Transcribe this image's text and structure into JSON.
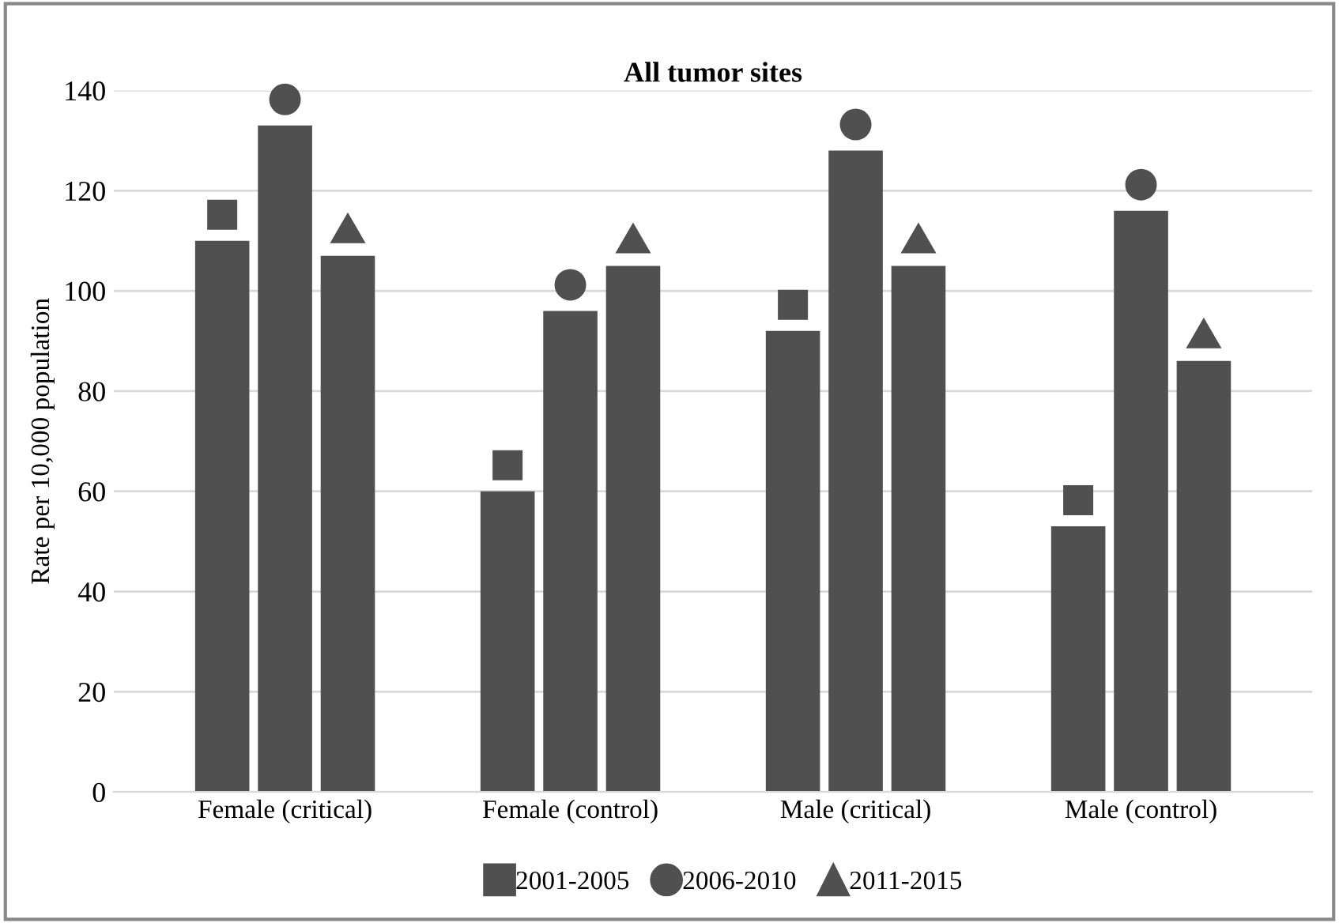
{
  "chart_data": {
    "type": "bar",
    "title": "All tumor sites",
    "ylabel": "Rate per 10,000 population",
    "categories": [
      "Female (critical)",
      "Female (control)",
      "Male (critical)",
      "Male (control)"
    ],
    "series": [
      {
        "name": "2001-2005",
        "color": "#505050",
        "marker": "square",
        "values": [
          110,
          60,
          92,
          53
        ]
      },
      {
        "name": "2006-2010",
        "color": "#505050",
        "marker": "circle",
        "values": [
          133,
          96,
          128,
          116
        ]
      },
      {
        "name": "2011-2015",
        "color": "#505050",
        "marker": "triangle",
        "values": [
          107,
          105,
          105,
          86
        ]
      }
    ],
    "ylim": [
      0,
      140
    ],
    "yticks": [
      0,
      20,
      40,
      60,
      80,
      100,
      120,
      140
    ],
    "grid": "y",
    "legend": "bottom"
  }
}
